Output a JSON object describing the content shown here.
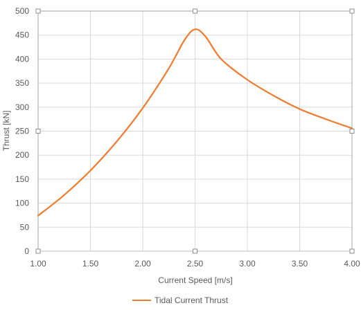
{
  "chart_data": {
    "type": "line",
    "xlabel": "Current Speed [m/s]",
    "ylabel": "Thrust [kN]",
    "xlim": [
      1.0,
      4.0
    ],
    "ylim": [
      0,
      500
    ],
    "x_ticks": [
      "1.00",
      "1.50",
      "2.00",
      "2.50",
      "3.00",
      "3.50",
      "4.00"
    ],
    "y_ticks": [
      "0",
      "50",
      "100",
      "150",
      "200",
      "250",
      "300",
      "350",
      "400",
      "450",
      "500"
    ],
    "grid": true,
    "legend_position": "bottom",
    "series": [
      {
        "name": "Tidal Current Thrust",
        "color": "#ED7D31",
        "x": [
          1.0,
          1.25,
          1.5,
          1.75,
          2.0,
          2.25,
          2.4,
          2.5,
          2.6,
          2.75,
          3.0,
          3.25,
          3.5,
          3.75,
          4.0
        ],
        "y": [
          74,
          117,
          168,
          228,
          298,
          381,
          440,
          462,
          447,
          400,
          357,
          324,
          296,
          275,
          256
        ]
      }
    ]
  }
}
